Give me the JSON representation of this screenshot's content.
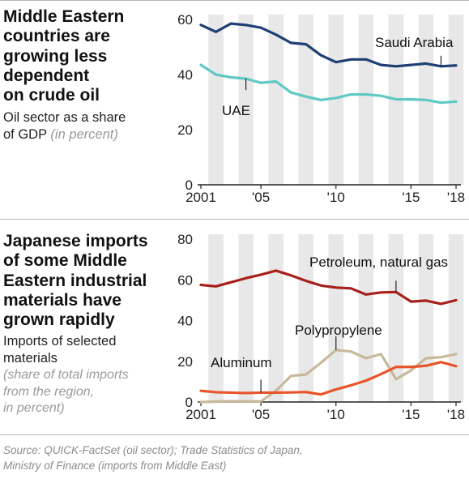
{
  "top": {
    "title_lines": [
      "Middle Eastern",
      "countries are",
      "growing less",
      "dependent",
      "on crude oil"
    ],
    "subtitle_lines": [
      "Oil sector as a share",
      "of GDP"
    ],
    "subtitle_note": "(in percent)"
  },
  "bottom": {
    "title_lines": [
      "Japanese imports",
      "of some Middle",
      "Eastern industrial",
      "materials have",
      "grown rapidly"
    ],
    "subtitle_lines": [
      "Imports of selected",
      "materials"
    ],
    "note_lines": [
      "(share of total imports",
      "from the region,",
      "in percent)"
    ]
  },
  "source": {
    "lines": [
      "Source: QUICK-FactSet (oil sector); Trade Statistics of Japan,",
      "Ministry of Finance (imports from Middle East)"
    ]
  },
  "colors": {
    "navy": "#1f3f73",
    "teal": "#5fc9c4",
    "darkred": "#a8201a",
    "orange": "#e8552b",
    "tan": "#c7b99a",
    "stripe": "#e8e8e8",
    "axis": "#222222"
  },
  "chart_data": [
    {
      "type": "line",
      "x": [
        2001,
        2002,
        2003,
        2004,
        2005,
        2006,
        2007,
        2008,
        2009,
        2010,
        2011,
        2012,
        2013,
        2014,
        2015,
        2016,
        2017,
        2018
      ],
      "x_tick_values": [
        2001,
        2005,
        2010,
        2015,
        2018
      ],
      "x_tick_labels": [
        "2001",
        "'05",
        "'10",
        "'15",
        "'18"
      ],
      "ylim": [
        0,
        60
      ],
      "y_ticks": [
        0,
        20,
        40,
        60
      ],
      "grid": false,
      "series": [
        {
          "name": "Saudi Arabia",
          "color": "#1f3f73",
          "values": [
            58,
            55.5,
            58.5,
            58,
            57,
            54.5,
            51.5,
            51,
            47,
            44.5,
            45.5,
            45.5,
            43.5,
            43,
            43.5,
            44,
            43,
            43.3
          ]
        },
        {
          "name": "UAE",
          "color": "#5fc9c4",
          "values": [
            43.5,
            40,
            39,
            38.5,
            37,
            37.5,
            33.5,
            32,
            30.8,
            31.5,
            32.8,
            32.8,
            32.3,
            31,
            31,
            30.8,
            29.8,
            30.2
          ]
        }
      ]
    },
    {
      "type": "line",
      "x": [
        2001,
        2002,
        2003,
        2004,
        2005,
        2006,
        2007,
        2008,
        2009,
        2010,
        2011,
        2012,
        2013,
        2014,
        2015,
        2016,
        2017,
        2018
      ],
      "x_tick_values": [
        2001,
        2005,
        2010,
        2015,
        2018
      ],
      "x_tick_labels": [
        "2001",
        "'05",
        "'10",
        "'15",
        "'18"
      ],
      "ylim": [
        0,
        80
      ],
      "y_ticks": [
        0,
        20,
        40,
        60,
        80
      ],
      "grid": false,
      "series": [
        {
          "name": "Petroleum, natural gas",
          "color": "#a8201a",
          "values": [
            57.5,
            56.8,
            58.8,
            60.8,
            62.5,
            64.5,
            62.2,
            59.5,
            57.2,
            56.2,
            55.8,
            52.8,
            53.8,
            54,
            49.3,
            49.8,
            48.2,
            50
          ]
        },
        {
          "name": "Polypropylene",
          "color": "#c7b99a",
          "values": [
            0,
            0.2,
            0.4,
            0.3,
            0.3,
            5.5,
            12.8,
            13.5,
            19.3,
            25.5,
            24.8,
            21.5,
            23.5,
            11.2,
            15.5,
            21.5,
            22,
            23.5
          ]
        },
        {
          "name": "Aluminum",
          "color": "#e8552b",
          "values": [
            5.5,
            4.8,
            4.6,
            4.4,
            4.6,
            4.6,
            4.7,
            4.9,
            3.7,
            6.2,
            8.2,
            10.5,
            13.7,
            17.2,
            17.2,
            17.8,
            19.6,
            17.6
          ]
        }
      ]
    }
  ]
}
